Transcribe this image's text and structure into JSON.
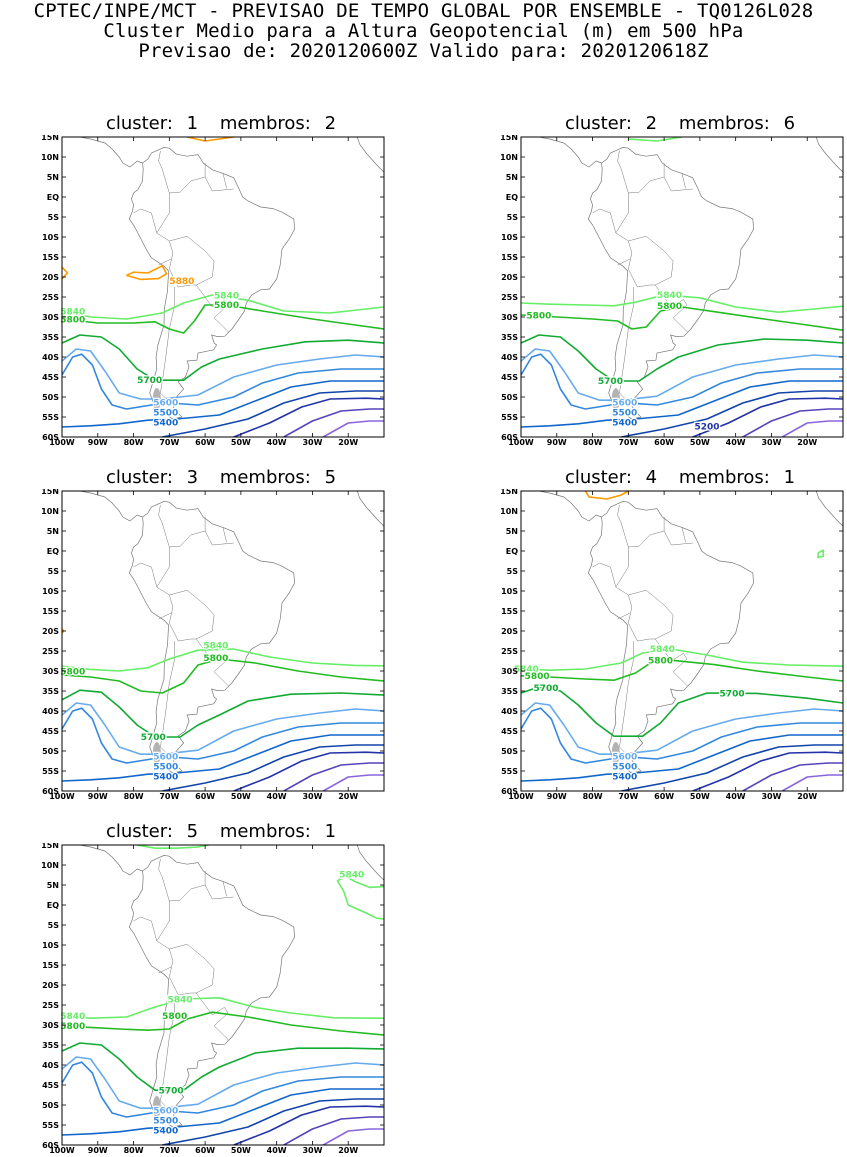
{
  "header": {
    "line1": "CPTEC/INPE/MCT - PREVISAO DE TEMPO GLOBAL POR ENSEMBLE - TQ0126L028",
    "line2": "Cluster Medio para a Altura Geopotencial (m) em 500 hPa",
    "line3": "Previsao de: 2020120600Z    Valido para: 2020120618Z"
  },
  "axes": {
    "lat_ticks": [
      "15N",
      "10N",
      "5N",
      "EQ",
      "5S",
      "10S",
      "15S",
      "20S",
      "25S",
      "30S",
      "35S",
      "40S",
      "45S",
      "50S",
      "55S",
      "60S"
    ],
    "lon_ticks": [
      "100W",
      "90W",
      "80W",
      "70W",
      "60W",
      "50W",
      "40W",
      "30W",
      "20W"
    ]
  },
  "colors": {
    "c5880": "#ff9900",
    "c5840": "#66ee66",
    "c5800": "#22bb22",
    "c5700": "#11aa33",
    "c5600": "#66aaee",
    "c5500": "#3388dd",
    "c5400": "#1166cc",
    "c5300": "#1144aa",
    "c5200": "#2233aa",
    "c5100": "#5544bb",
    "c5000": "#8866dd",
    "land": "#777777"
  },
  "panels": [
    {
      "cluster_label": "cluster:",
      "cluster_value": "1",
      "members_label": "membros:",
      "members_value": "2",
      "labels": [
        "5880",
        "5840",
        "5840",
        "5800",
        "5800",
        "5700",
        "5600",
        "5500",
        "5400"
      ]
    },
    {
      "cluster_label": "cluster:",
      "cluster_value": "2",
      "members_label": "membros:",
      "members_value": "6",
      "labels": [
        "5840",
        "5800",
        "5800",
        "5700",
        "5600",
        "5500",
        "5400",
        "5200"
      ]
    },
    {
      "cluster_label": "cluster:",
      "cluster_value": "3",
      "members_label": "membros:",
      "members_value": "5",
      "labels": [
        "5840",
        "5800",
        "5800",
        "5700",
        "5600",
        "5500",
        "5400"
      ]
    },
    {
      "cluster_label": "cluster:",
      "cluster_value": "4",
      "members_label": "membros:",
      "members_value": "1",
      "labels": [
        "5840",
        "5840",
        "5800",
        "5800",
        "5700",
        "5700",
        "5600",
        "5500",
        "5400"
      ]
    },
    {
      "cluster_label": "cluster:",
      "cluster_value": "5",
      "members_label": "membros:",
      "members_value": "1",
      "labels": [
        "5840",
        "5840",
        "5840",
        "5800",
        "5800",
        "5700",
        "5600",
        "5500",
        "5400"
      ]
    }
  ]
}
